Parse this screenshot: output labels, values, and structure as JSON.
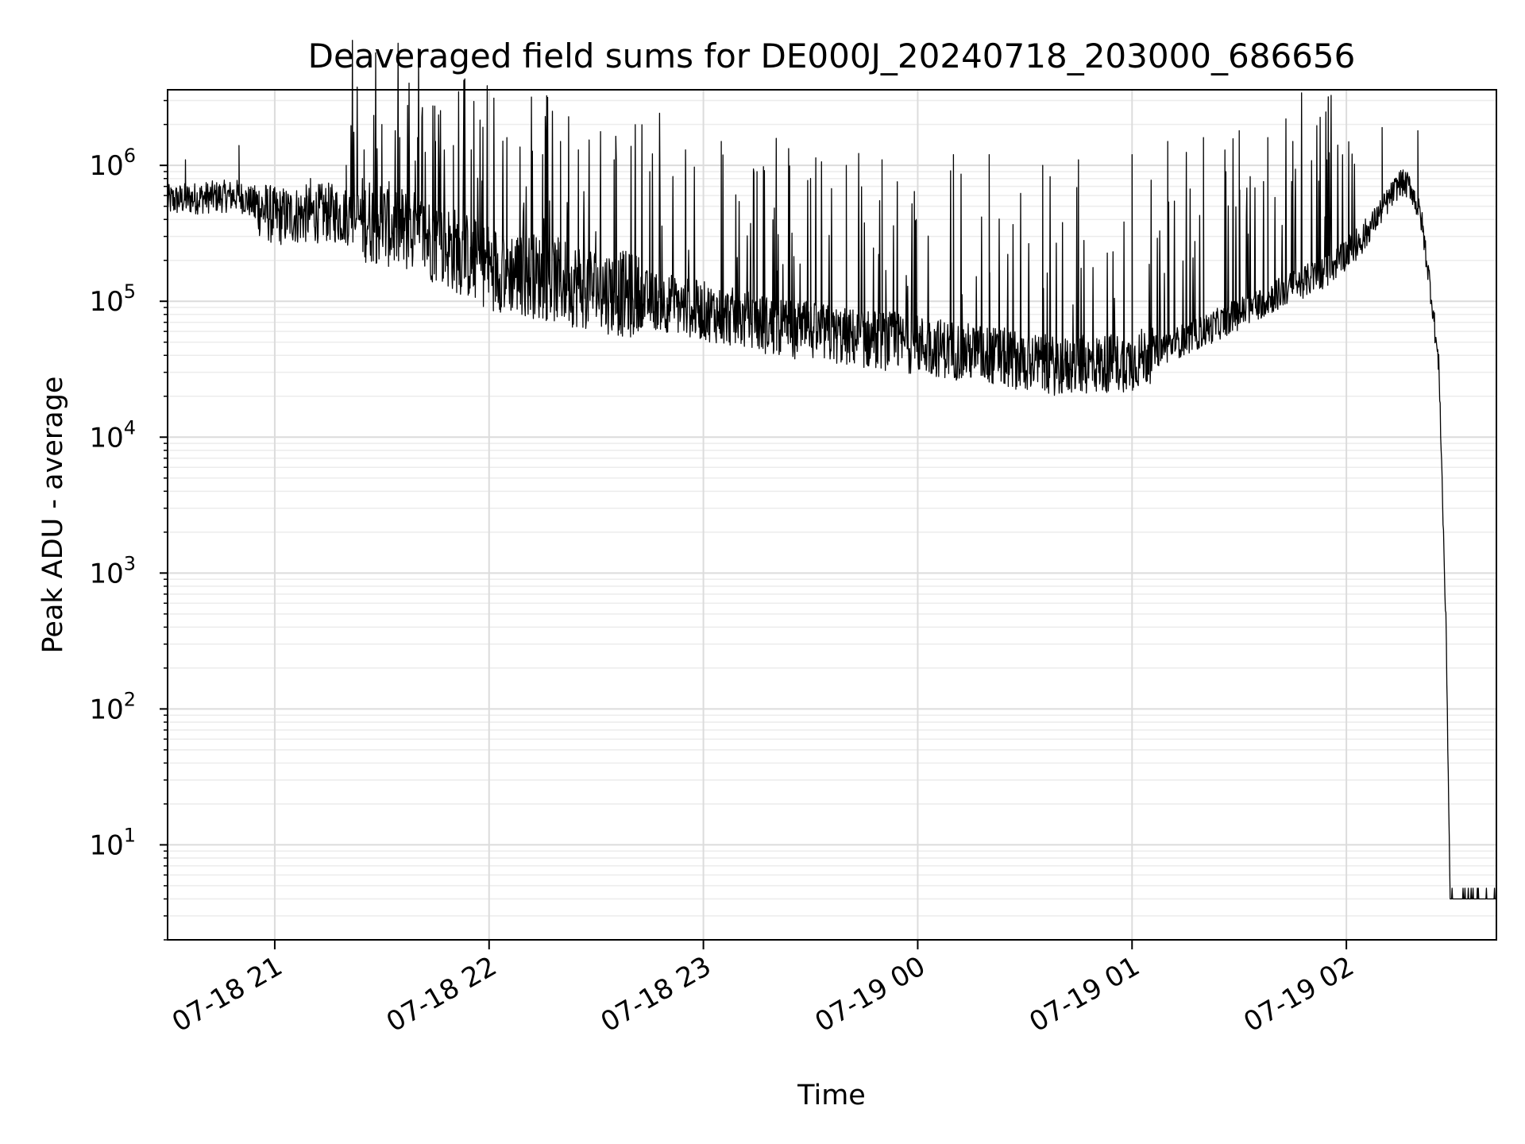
{
  "chart_data": {
    "type": "line",
    "title": "Deaveraged field sums for DE000J_20240718_203000_686656",
    "xlabel": "Time",
    "ylabel": "Peak ADU - average",
    "xlim": [
      "2024-07-18 20:30",
      "2024-07-19 02:42"
    ],
    "ylim": [
      2,
      3600000
    ],
    "yscale": "log",
    "grid": true,
    "x_ticks": [
      {
        "x": "2024-07-18 21:00",
        "label": "07-18 21"
      },
      {
        "x": "2024-07-18 22:00",
        "label": "07-18 22"
      },
      {
        "x": "2024-07-18 23:00",
        "label": "07-18 23"
      },
      {
        "x": "2024-07-19 00:00",
        "label": "07-19 00"
      },
      {
        "x": "2024-07-19 01:00",
        "label": "07-19 01"
      },
      {
        "x": "2024-07-19 02:00",
        "label": "07-19 02"
      }
    ],
    "y_ticks": [
      {
        "y": 10,
        "base": "10",
        "exp": "1"
      },
      {
        "y": 100,
        "base": "10",
        "exp": "2"
      },
      {
        "y": 1000,
        "base": "10",
        "exp": "3"
      },
      {
        "y": 10000,
        "base": "10",
        "exp": "4"
      },
      {
        "y": 100000,
        "base": "10",
        "exp": "5"
      },
      {
        "y": 1000000,
        "base": "10",
        "exp": "6"
      }
    ],
    "series": [
      {
        "color": "#000000",
        "baseline": {
          "x": [
            "2024-07-18 20:30",
            "2024-07-18 20:40",
            "2024-07-18 20:50",
            "2024-07-18 21:00",
            "2024-07-18 21:15",
            "2024-07-18 21:30",
            "2024-07-18 21:45",
            "2024-07-18 22:00",
            "2024-07-18 22:20",
            "2024-07-18 22:40",
            "2024-07-18 23:00",
            "2024-07-18 23:20",
            "2024-07-18 23:40",
            "2024-07-19 00:00",
            "2024-07-19 00:20",
            "2024-07-19 00:40",
            "2024-07-19 01:00",
            "2024-07-19 01:20",
            "2024-07-19 01:40",
            "2024-07-19 01:55",
            "2024-07-19 02:05",
            "2024-07-19 02:15",
            "2024-07-19 02:18",
            "2024-07-19 02:21",
            "2024-07-19 02:24",
            "2024-07-19 02:26",
            "2024-07-19 02:28",
            "2024-07-19 02:29",
            "2024-07-19 02:30",
            "2024-07-19 02:42"
          ],
          "y": [
            550000,
            580000,
            600000,
            420000,
            450000,
            380000,
            280000,
            180000,
            140000,
            110000,
            85000,
            65000,
            55000,
            48000,
            40000,
            33000,
            36000,
            60000,
            110000,
            170000,
            300000,
            750000,
            700000,
            400000,
            100000,
            30000,
            300,
            5,
            4,
            4
          ]
        },
        "spikes": [
          {
            "x": "2024-07-18 20:35",
            "y": 1100000
          },
          {
            "x": "2024-07-18 20:50",
            "y": 1400000
          },
          {
            "x": "2024-07-18 21:10",
            "y": 800000
          },
          {
            "x": "2024-07-18 21:20",
            "y": 1000000
          },
          {
            "x": "2024-07-18 21:25",
            "y": 1300000
          },
          {
            "x": "2024-07-18 21:30",
            "y": 1500000
          },
          {
            "x": "2024-07-18 21:35",
            "y": 1600000
          },
          {
            "x": "2024-07-18 21:40",
            "y": 1600000
          },
          {
            "x": "2024-07-18 21:45",
            "y": 1500000
          },
          {
            "x": "2024-07-18 21:50",
            "y": 1400000
          },
          {
            "x": "2024-07-18 21:55",
            "y": 1300000
          },
          {
            "x": "2024-07-18 22:05",
            "y": 1600000
          },
          {
            "x": "2024-07-18 22:15",
            "y": 1200000
          },
          {
            "x": "2024-07-18 22:20",
            "y": 1500000
          },
          {
            "x": "2024-07-18 22:25",
            "y": 1300000
          },
          {
            "x": "2024-07-18 22:35",
            "y": 1100000
          },
          {
            "x": "2024-07-18 22:45",
            "y": 900000
          },
          {
            "x": "2024-07-18 22:55",
            "y": 1300000
          },
          {
            "x": "2024-07-18 23:05",
            "y": 1500000
          },
          {
            "x": "2024-07-18 23:15",
            "y": 900000
          },
          {
            "x": "2024-07-18 23:30",
            "y": 800000
          },
          {
            "x": "2024-07-18 23:40",
            "y": 1000000
          },
          {
            "x": "2024-07-18 23:50",
            "y": 1100000
          },
          {
            "x": "2024-07-19 00:10",
            "y": 1200000
          },
          {
            "x": "2024-07-19 00:20",
            "y": 1200000
          },
          {
            "x": "2024-07-19 00:35",
            "y": 1000000
          },
          {
            "x": "2024-07-19 00:45",
            "y": 1100000
          },
          {
            "x": "2024-07-19 01:00",
            "y": 1200000
          },
          {
            "x": "2024-07-19 01:10",
            "y": 1500000
          },
          {
            "x": "2024-07-19 01:20",
            "y": 1600000
          },
          {
            "x": "2024-07-19 01:30",
            "y": 1800000
          },
          {
            "x": "2024-07-19 01:38",
            "y": 1600000
          },
          {
            "x": "2024-07-19 01:45",
            "y": 1500000
          },
          {
            "x": "2024-07-19 02:10",
            "y": 1900000
          },
          {
            "x": "2024-07-19 02:20",
            "y": 1800000
          }
        ]
      }
    ]
  }
}
